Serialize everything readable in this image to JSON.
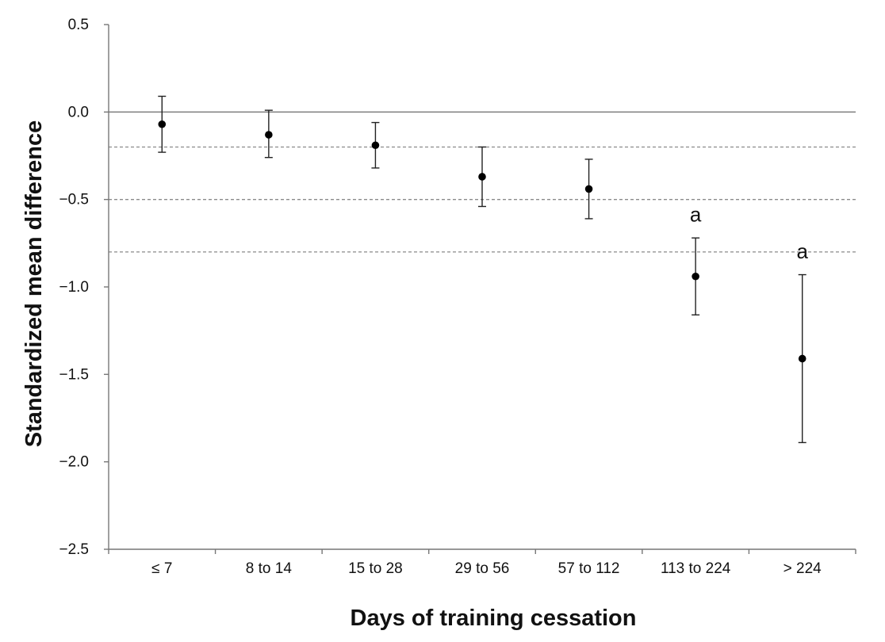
{
  "chart_data": {
    "type": "scatter",
    "title": "",
    "xlabel": "Days of training cessation",
    "ylabel": "Standardized mean difference",
    "ylim": [
      -2.5,
      0.5
    ],
    "y_ticks": [
      {
        "value": 0.5,
        "label": "0.5"
      },
      {
        "value": 0.0,
        "label": "0.0"
      },
      {
        "value": -0.5,
        "label": "−0.5"
      },
      {
        "value": -1.0,
        "label": "−1.0"
      },
      {
        "value": -1.5,
        "label": "−1.5"
      },
      {
        "value": -2.0,
        "label": "−2.0"
      },
      {
        "value": -2.5,
        "label": "−2.5"
      }
    ],
    "categories": [
      "≤ 7",
      "8 to 14",
      "15 to 28",
      "29 to 56",
      "57 to 112",
      "113 to 224",
      "> 224"
    ],
    "series": [
      {
        "name": "Standardized mean difference",
        "values": [
          -0.07,
          -0.13,
          -0.19,
          -0.37,
          -0.44,
          -0.94,
          -1.41
        ],
        "ci_lower": [
          -0.23,
          -0.26,
          -0.32,
          -0.54,
          -0.61,
          -1.16,
          -1.89
        ],
        "ci_upper": [
          0.09,
          0.01,
          -0.06,
          -0.2,
          -0.27,
          -0.72,
          -0.93
        ]
      }
    ],
    "reference_lines": [
      {
        "value": 0.0,
        "style": "solid"
      },
      {
        "value": -0.2,
        "style": "dashed"
      },
      {
        "value": -0.5,
        "style": "dashed"
      },
      {
        "value": -0.8,
        "style": "dashed"
      }
    ],
    "annotations": [
      {
        "category_index": 5,
        "text": "a",
        "value": -0.59
      },
      {
        "category_index": 6,
        "text": "a",
        "value": -0.8
      }
    ],
    "grid": false,
    "legend": "none"
  }
}
